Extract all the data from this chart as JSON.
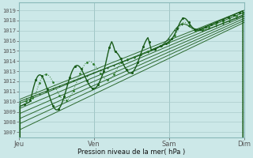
{
  "xlabel": "Pression niveau de la mer( hPa )",
  "bg_color": "#cce8e8",
  "grid_color": "#aacccc",
  "line_dark": "#1a5c1a",
  "line_mid": "#2e7d2e",
  "ylim_low": 1006.5,
  "ylim_high": 1019.8,
  "yticks": [
    1007,
    1008,
    1009,
    1010,
    1011,
    1012,
    1013,
    1014,
    1015,
    1016,
    1017,
    1018,
    1019
  ],
  "xtick_labels": [
    "Jeu",
    "Ven",
    "Sam",
    "Dim"
  ],
  "xtick_positions": [
    0.0,
    0.333,
    0.667,
    1.0
  ],
  "num_points": 200
}
